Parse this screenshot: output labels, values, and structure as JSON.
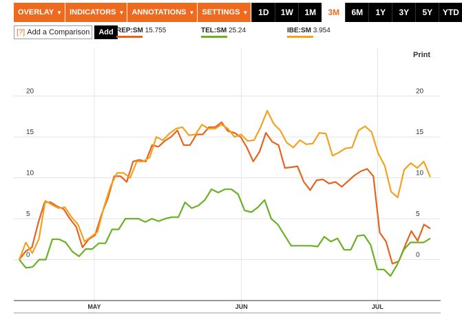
{
  "toolbar": {
    "menus": [
      "OVERLAY",
      "INDICATORS",
      "ANNOTATIONS",
      "SETTINGS"
    ],
    "ranges": [
      "1D",
      "1W",
      "1M",
      "3M",
      "6M",
      "1Y",
      "3Y",
      "5Y",
      "YTD"
    ],
    "active_range": "3M"
  },
  "compare": {
    "help": "[?]",
    "label": "Add a Comparison",
    "add_label": "Add"
  },
  "legend": [
    {
      "ticker": "REP:SM",
      "value": "15.755",
      "color": "#e8621c"
    },
    {
      "ticker": "TEL:SM",
      "value": "25.24",
      "color": "#6ab023"
    },
    {
      "ticker": "IBE:SM",
      "value": "3.954",
      "color": "#f5a01e"
    }
  ],
  "print_label": "Print",
  "colors": {
    "accent": "#ee6a1f",
    "active_range_text": "#ee6a1f"
  },
  "chart_data": {
    "type": "line",
    "title": "",
    "xlabel": "",
    "ylabel": "",
    "ylim": [
      -5,
      24
    ],
    "y_ticks": [
      0,
      5,
      10,
      15,
      20
    ],
    "x_ticks": [
      "MAY",
      "JUN",
      "JUL"
    ],
    "x_tick_positions": [
      13.5,
      40,
      64.5
    ],
    "x_range": [
      0,
      74
    ],
    "grid": true,
    "series": [
      {
        "name": "REP:SM",
        "color": "#e8621c",
        "values": [
          0,
          1,
          1.5,
          4.5,
          7,
          7,
          6.5,
          6.2,
          5,
          4,
          1.5,
          2.5,
          3,
          5.5,
          7.5,
          10.2,
          10.2,
          9.5,
          12,
          12.2,
          12,
          14,
          13.8,
          14.5,
          15,
          15.8,
          14,
          14,
          15.3,
          15.3,
          16.2,
          16.2,
          16.8,
          15.7,
          15.5,
          15,
          13.7,
          12,
          13.2,
          15.5,
          14.4,
          14,
          11.2,
          11.3,
          11.4,
          9.5,
          8.5,
          9.7,
          9.8,
          9.3,
          9.5,
          8.9,
          9.6,
          10.3,
          10.8,
          11.1,
          10.2,
          3.3,
          2.2,
          -0.5,
          -0.2,
          1.7,
          3.5,
          2.3,
          4.3,
          3.8
        ]
      },
      {
        "name": "TEL:SM",
        "color": "#6ab023",
        "values": [
          0,
          -1,
          -0.9,
          0,
          0,
          2.5,
          2.5,
          2.1,
          1,
          0.4,
          1.3,
          1.3,
          2,
          2,
          3.7,
          3.7,
          5,
          5,
          5,
          4.6,
          5,
          4.7,
          5,
          5.2,
          5.2,
          7,
          6.3,
          6.6,
          7.3,
          8.6,
          8.2,
          8.6,
          8.6,
          8,
          6,
          5.8,
          6.4,
          7.3,
          5,
          4.3,
          3,
          1.7,
          1.7,
          1.7,
          1.7,
          1.6,
          2.8,
          2.2,
          2.6,
          1.2,
          1.2,
          2.9,
          3,
          1.8,
          -1.2,
          -1.2,
          -2,
          -0.6,
          1.2,
          2.1,
          2.1,
          2.1,
          2.6
        ]
      },
      {
        "name": "IBE:SM",
        "color": "#f5a01e",
        "values": [
          0,
          2.1,
          0.8,
          2.5,
          7.2,
          6.7,
          6.3,
          6.4,
          5.2,
          4.3,
          2.2,
          2.8,
          3.4,
          6.5,
          9,
          10.6,
          10.6,
          10,
          12,
          12,
          12.5,
          15,
          14.6,
          15.4,
          16,
          16.2,
          15.2,
          15.3,
          16.5,
          16,
          16,
          16.5,
          16,
          15,
          15.3,
          14.5,
          14.6,
          16.2,
          18.2,
          16.6,
          15.8,
          14.3,
          13.7,
          14.6,
          14.1,
          14.2,
          15.5,
          15.4,
          12.7,
          13.1,
          13.6,
          13.7,
          15.8,
          16.3,
          15.6,
          13,
          11.5,
          8.3,
          7.6,
          11,
          11.8,
          11.2,
          12,
          10.1
        ]
      }
    ]
  }
}
